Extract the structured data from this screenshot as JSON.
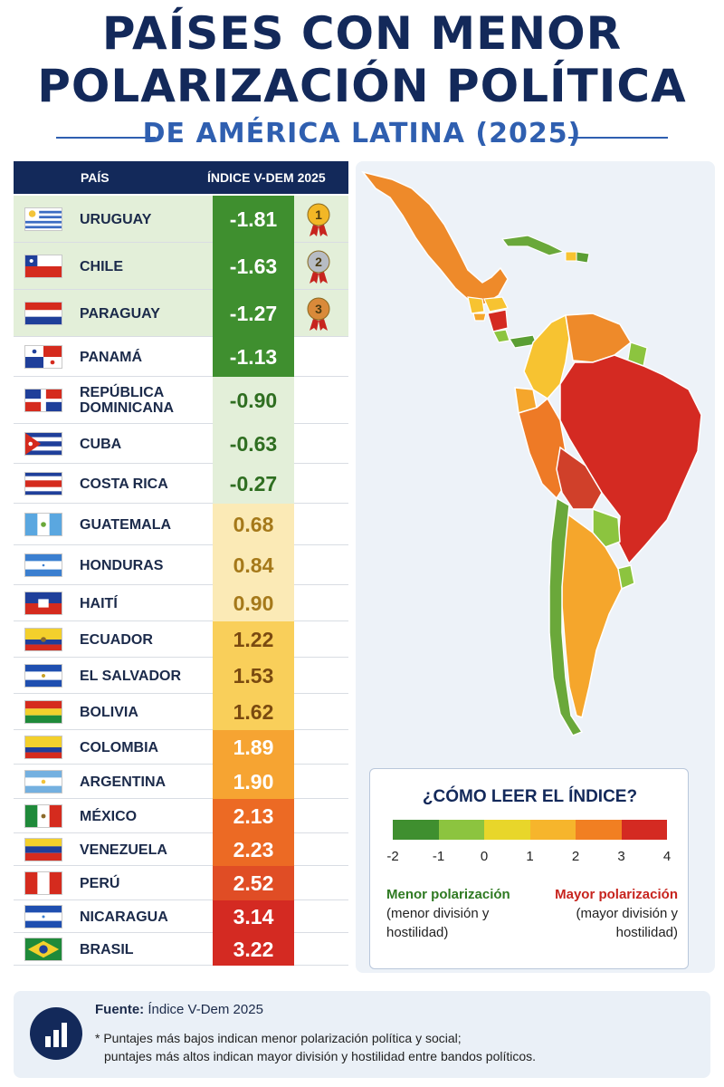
{
  "title": {
    "line1": "PAÍSES CON MENOR",
    "line2": "POLARIZACIÓN POLÍTICA",
    "subtitle": "DE AMÉRICA LATINA (2025)"
  },
  "table": {
    "col_country": "PAÍS",
    "col_index": "ÍNDICE V-DEM 2025"
  },
  "chart_data": {
    "type": "table",
    "title": "PAÍSES CON MENOR POLARIZACIÓN POLÍTICA DE AMÉRICA LATINA (2025)",
    "columns": [
      "PAÍS",
      "ÍNDICE V-DEM 2025"
    ],
    "rows": [
      {
        "country": "URUGUAY",
        "value": "-1.81",
        "num": -1.81,
        "flag": "uruguay",
        "medal": "1"
      },
      {
        "country": "CHILE",
        "value": "-1.63",
        "num": -1.63,
        "flag": "chile",
        "medal": "2"
      },
      {
        "country": "PARAGUAY",
        "value": "-1.27",
        "num": -1.27,
        "flag": "paraguay",
        "medal": "3"
      },
      {
        "country": "PANAMÁ",
        "value": "-1.13",
        "num": -1.13,
        "flag": "panama"
      },
      {
        "country": "REPÚBLICA DOMINICANA",
        "value": "-0.90",
        "num": -0.9,
        "flag": "dominican-republic"
      },
      {
        "country": "CUBA",
        "value": "-0.63",
        "num": -0.63,
        "flag": "cuba"
      },
      {
        "country": "COSTA RICA",
        "value": "-0.27",
        "num": -0.27,
        "flag": "costa-rica"
      },
      {
        "country": "GUATEMALA",
        "value": "0.68",
        "num": 0.68,
        "flag": "guatemala"
      },
      {
        "country": "HONDURAS",
        "value": "0.84",
        "num": 0.84,
        "flag": "honduras"
      },
      {
        "country": "HAITÍ",
        "value": "0.90",
        "num": 0.9,
        "flag": "haiti"
      },
      {
        "country": "ECUADOR",
        "value": "1.22",
        "num": 1.22,
        "flag": "ecuador"
      },
      {
        "country": "EL SALVADOR",
        "value": "1.53",
        "num": 1.53,
        "flag": "el-salvador"
      },
      {
        "country": "BOLIVIA",
        "value": "1.62",
        "num": 1.62,
        "flag": "bolivia"
      },
      {
        "country": "COLOMBIA",
        "value": "1.89",
        "num": 1.89,
        "flag": "colombia"
      },
      {
        "country": "ARGENTINA",
        "value": "1.90",
        "num": 1.9,
        "flag": "argentina"
      },
      {
        "country": "MÉXICO",
        "value": "2.13",
        "num": 2.13,
        "flag": "mexico"
      },
      {
        "country": "VENEZUELA",
        "value": "2.23",
        "num": 2.23,
        "flag": "venezuela"
      },
      {
        "country": "PERÚ",
        "value": "2.52",
        "num": 2.52,
        "flag": "peru"
      },
      {
        "country": "NICARAGUA",
        "value": "3.14",
        "num": 3.14,
        "flag": "nicaragua"
      },
      {
        "country": "BRASIL",
        "value": "3.22",
        "num": 3.22,
        "flag": "brazil"
      }
    ],
    "color_scale": {
      "min": -2,
      "max": 4,
      "colors": [
        "#3f8f2f",
        "#8cc43f",
        "#e8d62a",
        "#f6b52c",
        "#f17f22",
        "#d42a22"
      ]
    }
  },
  "legend": {
    "title": "¿CÓMO LEER EL ÍNDICE?",
    "ticks": [
      "-2",
      "-1",
      "0",
      "1",
      "2",
      "3",
      "4"
    ],
    "low_label": "Menor polarización",
    "low_desc": "(menor división y hostilidad)",
    "high_label": "Mayor polarización",
    "high_desc": "(mayor división y hostilidad)"
  },
  "footer": {
    "source_label": "Fuente:",
    "source_value": "Índice V-Dem 2025",
    "note_line1": "* Puntajes más bajos indican menor polarización política y social;",
    "note_line2": "puntajes más altos indican mayor división y hostilidad entre bandos políticos.",
    "icon": "bar-chart-icon"
  },
  "map": {
    "description_icon": "latin-america-map"
  }
}
